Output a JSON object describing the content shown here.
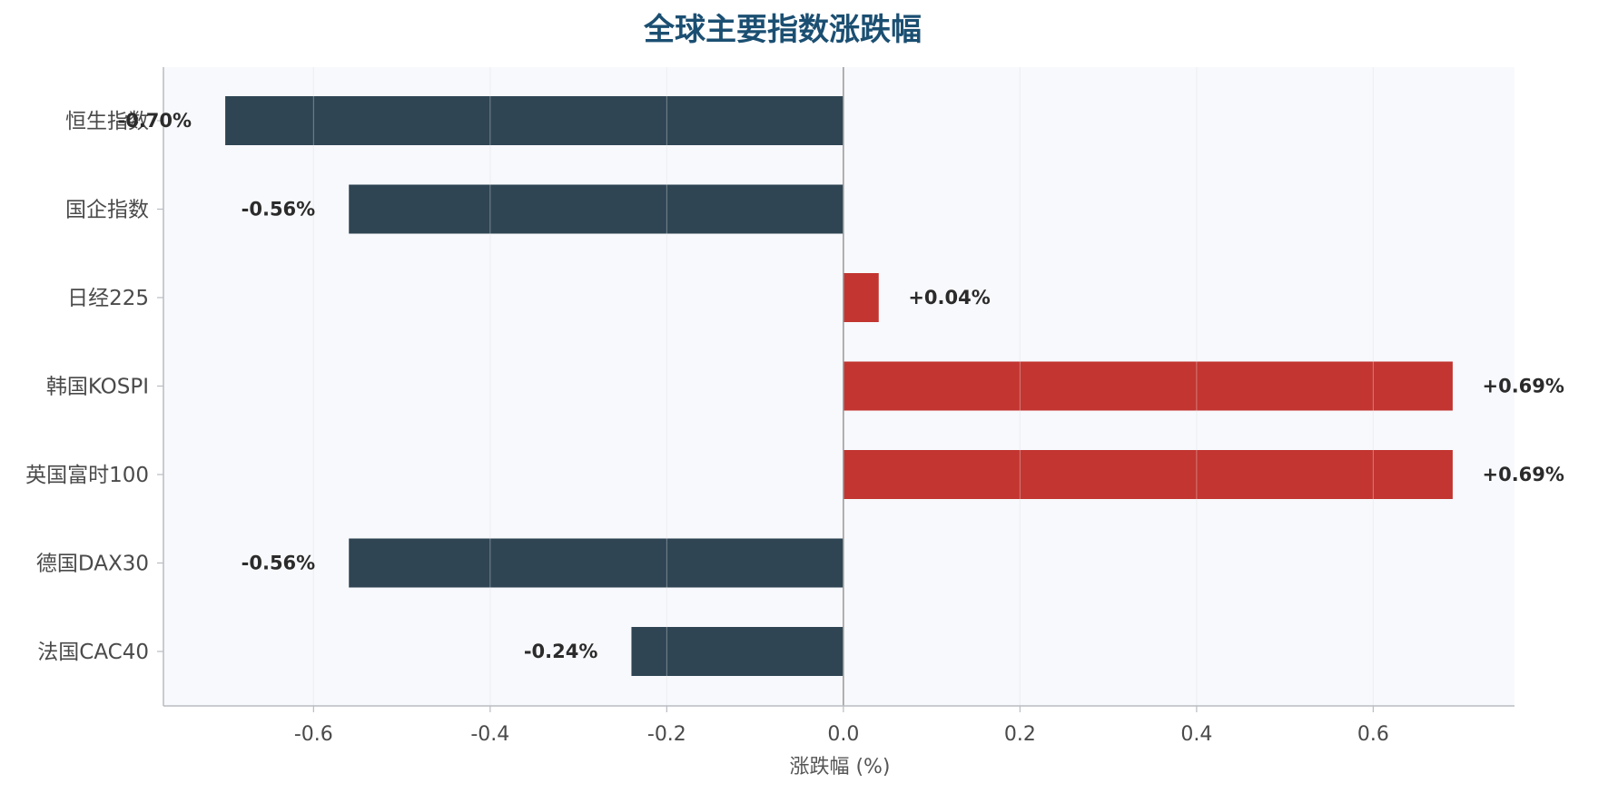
{
  "chart_data": {
    "type": "bar",
    "orientation": "horizontal",
    "title": "全球主要指数涨跌幅",
    "xlabel": "涨跌幅 (%)",
    "ylabel": "",
    "categories": [
      "恒生指数",
      "国企指数",
      "日经225",
      "韩国KOSPI",
      "英国富时100",
      "德国DAX30",
      "法国CAC40"
    ],
    "values": [
      -0.7,
      -0.56,
      0.04,
      0.69,
      0.69,
      -0.56,
      -0.24
    ],
    "data_labels": [
      "-0.70%",
      "-0.56%",
      "+0.04%",
      "+0.69%",
      "+0.69%",
      "-0.56%",
      "-0.24%"
    ],
    "xlim": [
      -0.77,
      0.76
    ],
    "x_ticks": [
      -0.6,
      -0.4,
      -0.2,
      0.0,
      0.2,
      0.4,
      0.6
    ],
    "x_tick_labels": [
      "-0.6",
      "-0.4",
      "-0.2",
      "0.0",
      "0.2",
      "0.4",
      "0.6"
    ],
    "grid": "vertical",
    "legend": "none",
    "colors": {
      "positive": "#c23531",
      "negative": "#2f4554",
      "title": "#1b4f72",
      "plot_background": "#f8f9fc",
      "grid": "#e3e6ea",
      "axis": "#b8bcc2",
      "zero_line": "#9a9a9a"
    }
  }
}
